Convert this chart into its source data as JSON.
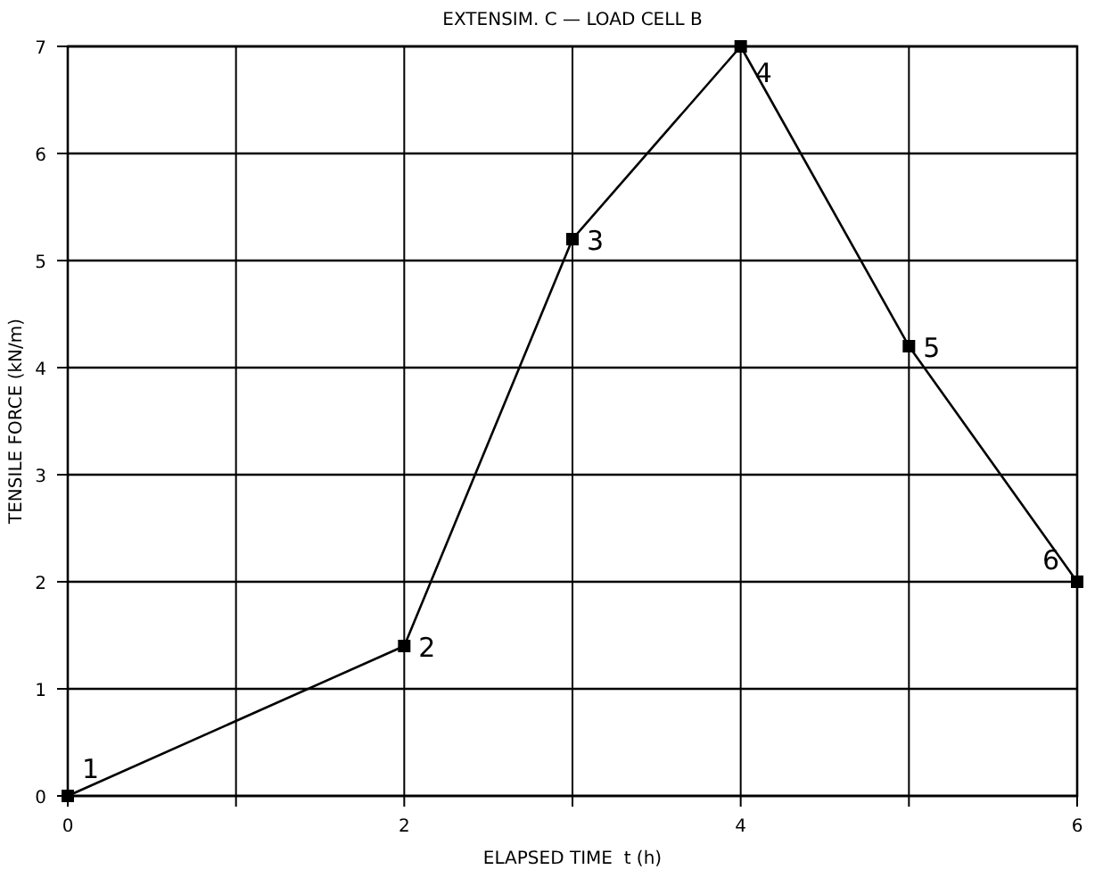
{
  "chart_data": {
    "type": "line",
    "title": "EXTENSIM. C — LOAD CELL B",
    "xlabel": "ELAPSED TIME  t (h)",
    "ylabel": "TENSILE FORCE (kN/m)",
    "x": [
      0,
      2,
      3,
      4,
      5,
      6
    ],
    "series": [
      {
        "color": "#000000",
        "values": [
          0,
          1.4,
          5.2,
          7,
          4.2,
          2
        ]
      }
    ],
    "xlim": [
      0,
      6
    ],
    "xticks": [
      0,
      {
        "value": 1,
        "label": null
      },
      2,
      {
        "value": 3,
        "label": null
      },
      4,
      {
        "value": 5,
        "label": null
      },
      6
    ],
    "ylim": [
      0,
      7
    ],
    "yticks": [
      0,
      1,
      2,
      3,
      4,
      5,
      6,
      7
    ],
    "grid": true,
    "marker": "square",
    "line_style": "solid",
    "annotations": [
      {
        "text": "1",
        "x": 0,
        "y": 0
      },
      {
        "text": "2",
        "x": 2,
        "y": 1.4
      },
      {
        "text": "3",
        "x": 3,
        "y": 5.2
      },
      {
        "text": "4",
        "x": 4,
        "y": 7
      },
      {
        "text": "5",
        "x": 5,
        "y": 4.2
      },
      {
        "text": "6",
        "x": 6,
        "y": 2
      }
    ]
  }
}
